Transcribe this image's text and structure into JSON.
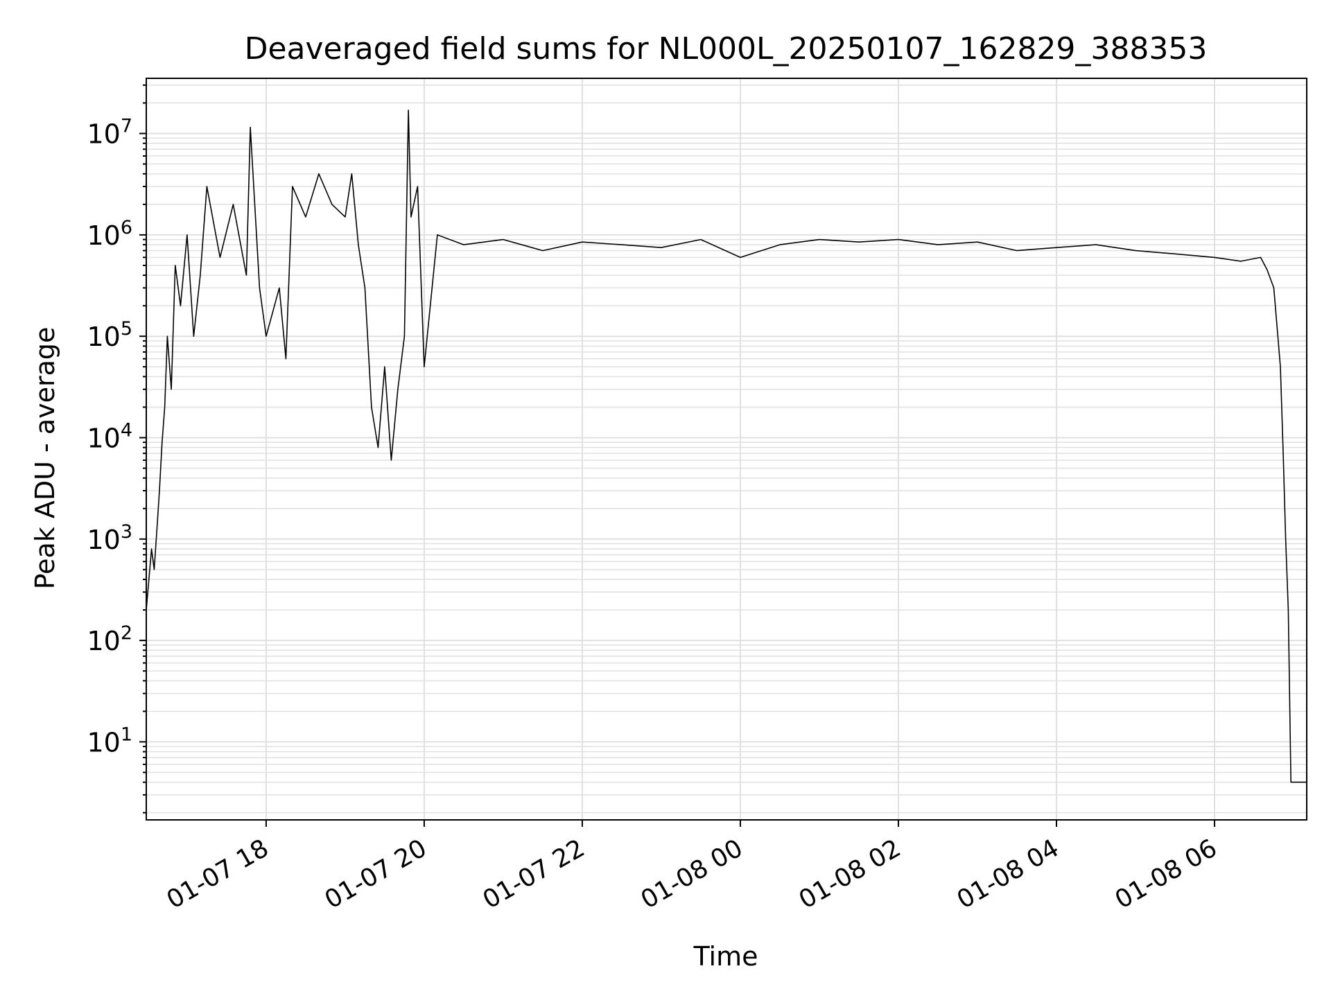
{
  "chart_data": {
    "type": "line",
    "title": "Deaveraged field sums for NL000L_20250107_162829_388353",
    "xlabel": "Time",
    "ylabel": "Peak ADU - average",
    "yscale": "log",
    "ylim": [
      1.7,
      35000000
    ],
    "xlim": [
      "2025-01-07 16:29",
      "2025-01-08 07:10"
    ],
    "grid": true,
    "line_color": "#000000",
    "grid_color": "#e0e0e0",
    "x_ticks": [
      {
        "value": "2025-01-07 18:00",
        "label": "01-07 18"
      },
      {
        "value": "2025-01-07 20:00",
        "label": "01-07 20"
      },
      {
        "value": "2025-01-07 22:00",
        "label": "01-07 22"
      },
      {
        "value": "2025-01-08 00:00",
        "label": "01-08 00"
      },
      {
        "value": "2025-01-08 02:00",
        "label": "01-08 02"
      },
      {
        "value": "2025-01-08 04:00",
        "label": "01-08 04"
      },
      {
        "value": "2025-01-08 06:00",
        "label": "01-08 06"
      }
    ],
    "y_ticks": [
      {
        "value": 10,
        "base": "10",
        "exp": "1"
      },
      {
        "value": 100,
        "base": "10",
        "exp": "2"
      },
      {
        "value": 1000,
        "base": "10",
        "exp": "3"
      },
      {
        "value": 10000,
        "base": "10",
        "exp": "4"
      },
      {
        "value": 100000,
        "base": "10",
        "exp": "5"
      },
      {
        "value": 1000000,
        "base": "10",
        "exp": "6"
      },
      {
        "value": 10000000,
        "base": "10",
        "exp": "7"
      }
    ],
    "series": [
      {
        "values": [
          [
            "2025-01-07 16:29",
            200
          ],
          [
            "2025-01-07 16:31",
            400
          ],
          [
            "2025-01-07 16:33",
            800
          ],
          [
            "2025-01-07 16:35",
            500
          ],
          [
            "2025-01-07 16:37",
            1200
          ],
          [
            "2025-01-07 16:39",
            3000
          ],
          [
            "2025-01-07 16:41",
            9000
          ],
          [
            "2025-01-07 16:43",
            20000
          ],
          [
            "2025-01-07 16:45",
            100000
          ],
          [
            "2025-01-07 16:48",
            30000
          ],
          [
            "2025-01-07 16:51",
            500000
          ],
          [
            "2025-01-07 16:55",
            200000
          ],
          [
            "2025-01-07 17:00",
            1000000
          ],
          [
            "2025-01-07 17:05",
            100000
          ],
          [
            "2025-01-07 17:10",
            400000
          ],
          [
            "2025-01-07 17:15",
            3000000
          ],
          [
            "2025-01-07 17:25",
            600000
          ],
          [
            "2025-01-07 17:35",
            2000000
          ],
          [
            "2025-01-07 17:45",
            400000
          ],
          [
            "2025-01-07 17:48",
            11500000
          ],
          [
            "2025-01-07 17:55",
            300000
          ],
          [
            "2025-01-07 18:00",
            100000
          ],
          [
            "2025-01-07 18:10",
            300000
          ],
          [
            "2025-01-07 18:15",
            60000
          ],
          [
            "2025-01-07 18:20",
            3000000
          ],
          [
            "2025-01-07 18:30",
            1500000
          ],
          [
            "2025-01-07 18:40",
            4000000
          ],
          [
            "2025-01-07 18:50",
            2000000
          ],
          [
            "2025-01-07 19:00",
            1500000
          ],
          [
            "2025-01-07 19:05",
            4000000
          ],
          [
            "2025-01-07 19:10",
            800000
          ],
          [
            "2025-01-07 19:15",
            300000
          ],
          [
            "2025-01-07 19:20",
            20000
          ],
          [
            "2025-01-07 19:25",
            8000
          ],
          [
            "2025-01-07 19:30",
            50000
          ],
          [
            "2025-01-07 19:35",
            6000
          ],
          [
            "2025-01-07 19:40",
            30000
          ],
          [
            "2025-01-07 19:45",
            100000
          ],
          [
            "2025-01-07 19:48",
            17000000
          ],
          [
            "2025-01-07 19:50",
            1500000
          ],
          [
            "2025-01-07 19:55",
            3000000
          ],
          [
            "2025-01-07 20:00",
            50000
          ],
          [
            "2025-01-07 20:10",
            1000000
          ],
          [
            "2025-01-07 20:30",
            800000
          ],
          [
            "2025-01-07 21:00",
            900000
          ],
          [
            "2025-01-07 21:30",
            700000
          ],
          [
            "2025-01-07 22:00",
            850000
          ],
          [
            "2025-01-07 22:30",
            800000
          ],
          [
            "2025-01-07 23:00",
            750000
          ],
          [
            "2025-01-07 23:30",
            900000
          ],
          [
            "2025-01-08 00:00",
            600000
          ],
          [
            "2025-01-08 00:30",
            800000
          ],
          [
            "2025-01-08 01:00",
            900000
          ],
          [
            "2025-01-08 01:30",
            850000
          ],
          [
            "2025-01-08 02:00",
            900000
          ],
          [
            "2025-01-08 02:30",
            800000
          ],
          [
            "2025-01-08 03:00",
            850000
          ],
          [
            "2025-01-08 03:30",
            700000
          ],
          [
            "2025-01-08 04:00",
            750000
          ],
          [
            "2025-01-08 04:30",
            800000
          ],
          [
            "2025-01-08 05:00",
            700000
          ],
          [
            "2025-01-08 05:30",
            650000
          ],
          [
            "2025-01-08 06:00",
            600000
          ],
          [
            "2025-01-08 06:20",
            550000
          ],
          [
            "2025-01-08 06:35",
            600000
          ],
          [
            "2025-01-08 06:40",
            450000
          ],
          [
            "2025-01-08 06:45",
            300000
          ],
          [
            "2025-01-08 06:50",
            50000
          ],
          [
            "2025-01-08 06:52",
            8000
          ],
          [
            "2025-01-08 06:54",
            1000
          ],
          [
            "2025-01-08 06:56",
            200
          ],
          [
            "2025-01-08 06:58",
            4
          ],
          [
            "2025-01-08 07:10",
            4
          ]
        ]
      }
    ]
  }
}
